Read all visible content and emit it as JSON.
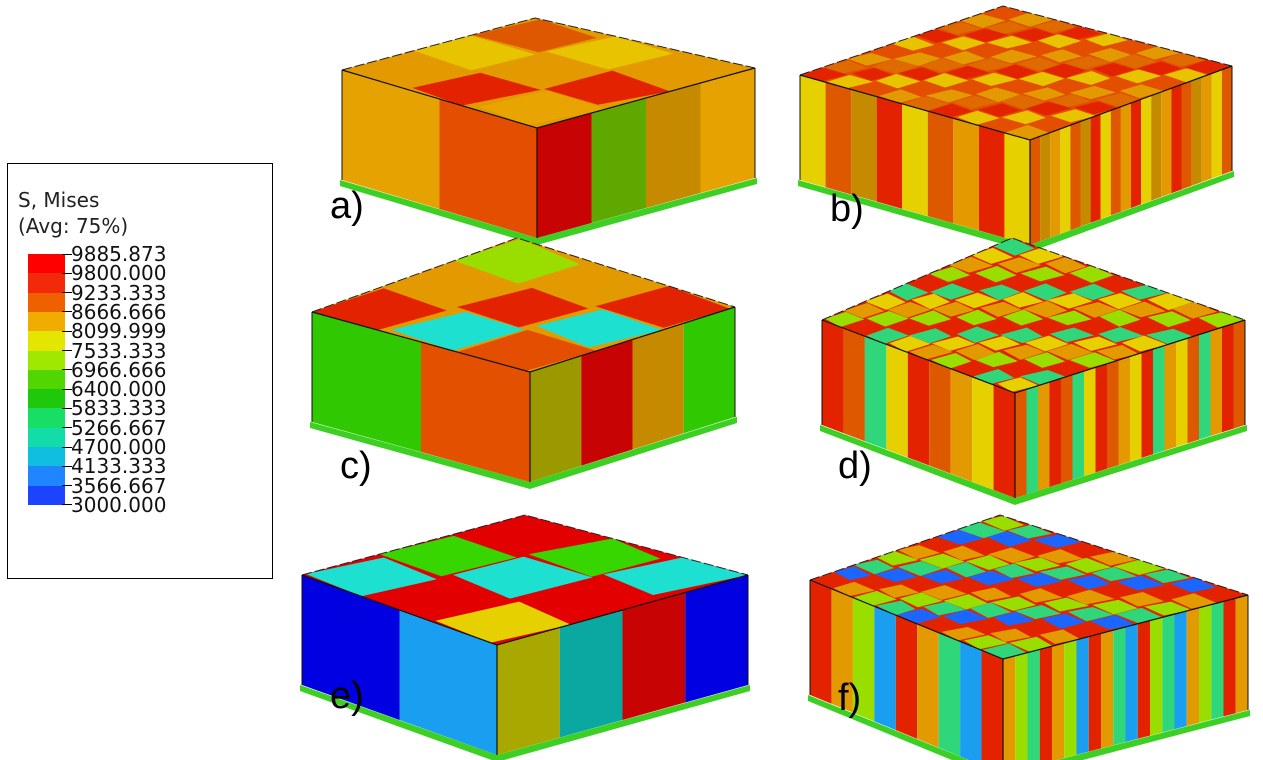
{
  "legend": {
    "title_line1": "S, Mises",
    "title_line2": "(Avg: 75%)",
    "entries": [
      {
        "value": "9885.873",
        "color": "#ff0000"
      },
      {
        "value": "9800.000",
        "color": "#f32a0a"
      },
      {
        "value": "9233.333",
        "color": "#ef6000"
      },
      {
        "value": "8666.666",
        "color": "#f0ad00"
      },
      {
        "value": "8099.999",
        "color": "#e5e600"
      },
      {
        "value": "7533.333",
        "color": "#a0e800"
      },
      {
        "value": "6966.666",
        "color": "#52d600"
      },
      {
        "value": "6400.000",
        "color": "#1fc80a"
      },
      {
        "value": "5833.333",
        "color": "#18de66"
      },
      {
        "value": "5266.667",
        "color": "#12dca8"
      },
      {
        "value": "4700.000",
        "color": "#10bfe0"
      },
      {
        "value": "4133.333",
        "color": "#1f86ff"
      },
      {
        "value": "3566.667",
        "color": "#1c44ff"
      },
      {
        "value": "3000.000",
        "color": "#0000ff"
      }
    ]
  },
  "panels": [
    {
      "label": "a)",
      "grain": "coarse",
      "front_colors": [
        "#e6a200",
        "#e34e00",
        "#c80303",
        "#5ea800",
        "#c58a00"
      ],
      "top_colors": [
        "#e39a00",
        "#de5800",
        "#e32300",
        "#e8c400",
        "#e8a400"
      ]
    },
    {
      "label": "b)",
      "grain": "fine",
      "front_colors": [
        "#e6d000",
        "#e39a00",
        "#de5800",
        "#e32300",
        "#c58a00"
      ],
      "top_colors": [
        "#e34e00",
        "#e32300",
        "#e39a00",
        "#e8c400",
        "#de6a00"
      ]
    },
    {
      "label": "c)",
      "grain": "coarse",
      "front_colors": [
        "#30c800",
        "#e35000",
        "#9a9a00",
        "#c80303",
        "#c58a00"
      ],
      "top_colors": [
        "#e39a00",
        "#e34e00",
        "#e32300",
        "#9ade00",
        "#1de0d0"
      ]
    },
    {
      "label": "d)",
      "grain": "fine",
      "front_colors": [
        "#e32300",
        "#e39a00",
        "#de5800",
        "#e6d000",
        "#2fd67a"
      ],
      "top_colors": [
        "#e32300",
        "#e39a00",
        "#2fd67a",
        "#9ade00",
        "#e6d000"
      ]
    },
    {
      "label": "e)",
      "grain": "coarse",
      "front_colors": [
        "#0000e0",
        "#1a9ff0",
        "#a8a800",
        "#0aa8a0",
        "#c80303"
      ],
      "top_colors": [
        "#e30000",
        "#e30000",
        "#38d600",
        "#e6d000",
        "#1de0d0"
      ]
    },
    {
      "label": "f)",
      "grain": "fine",
      "front_colors": [
        "#e32300",
        "#2fd67a",
        "#e39a00",
        "#1a9ff0",
        "#9ade00"
      ],
      "top_colors": [
        "#e32300",
        "#2fd67a",
        "#e39a00",
        "#1a66ff",
        "#9ade00"
      ]
    }
  ]
}
